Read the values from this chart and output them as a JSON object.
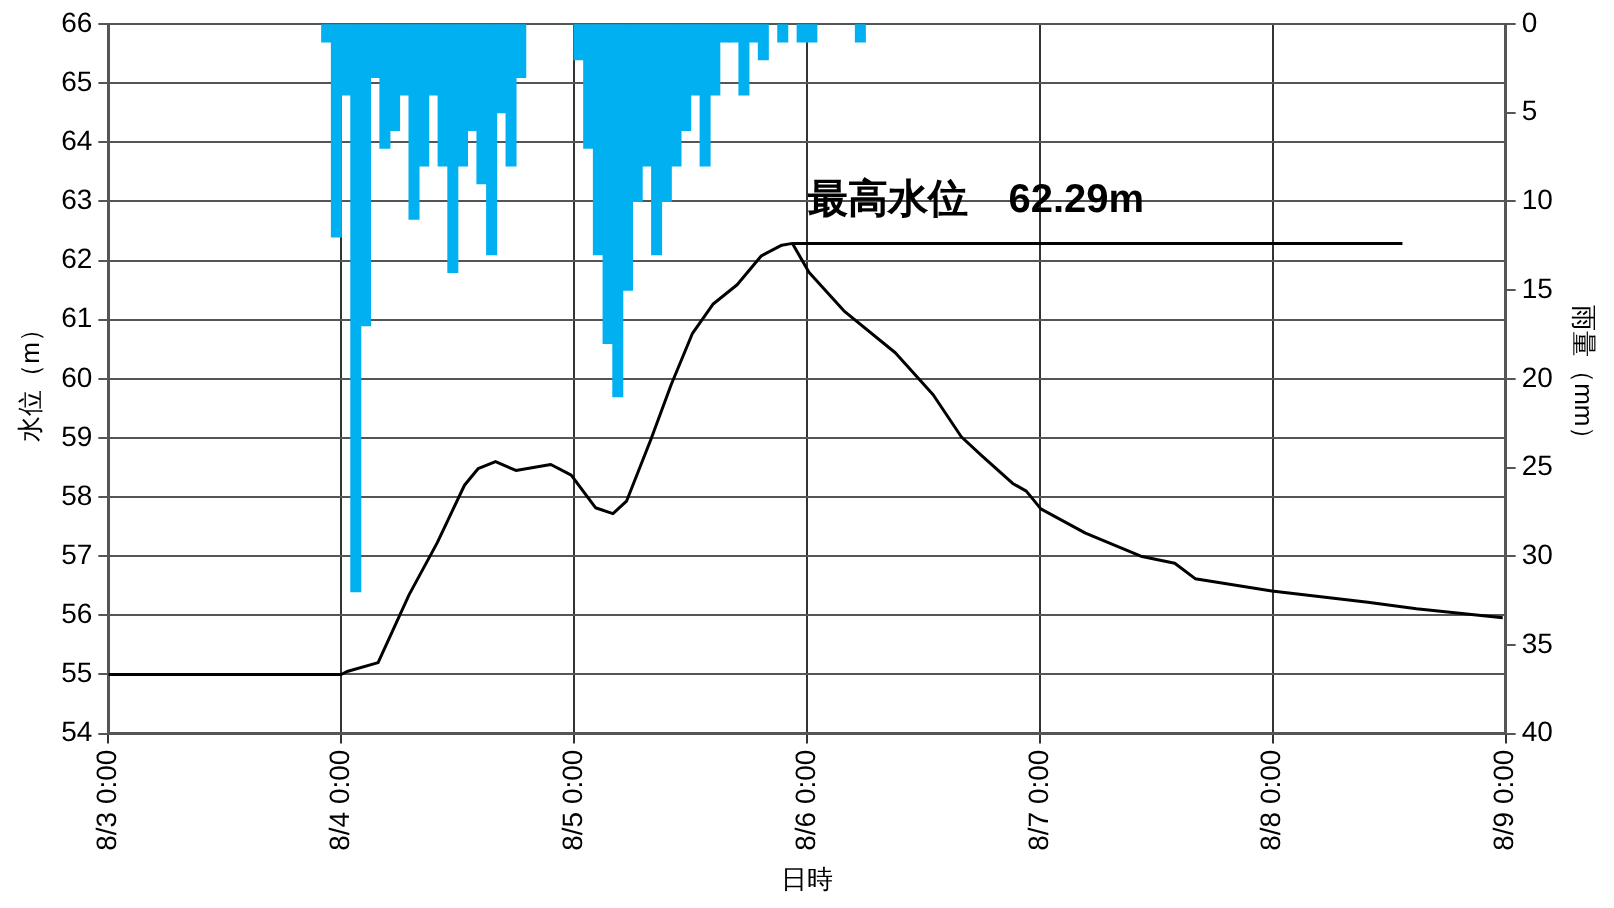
{
  "chart_data": {
    "type": "line",
    "xlabel": "日時",
    "ylabel": "水位（m）",
    "y2label": "雨量（mm）",
    "xlim": [
      "--08-03T00:00",
      "--08-09T00:00"
    ],
    "xticks": [
      {
        "value": "--08-03T00:00",
        "label": "8/3 0:00"
      },
      {
        "value": "--08-04T00:00",
        "label": "8/4 0:00"
      },
      {
        "value": "--08-05T00:00",
        "label": "8/5 0:00"
      },
      {
        "value": "--08-06T00:00",
        "label": "8/6 0:00"
      },
      {
        "value": "--08-07T00:00",
        "label": "8/7 0:00"
      },
      {
        "value": "--08-08T00:00",
        "label": "8/8 0:00"
      },
      {
        "value": "--08-09T00:00",
        "label": "8/9 0:00"
      }
    ],
    "ylim": [
      54,
      66
    ],
    "yticks": [
      54,
      55,
      56,
      57,
      58,
      59,
      60,
      61,
      62,
      63,
      64,
      65,
      66
    ],
    "y2lim": [
      40,
      0
    ],
    "y2ticks": [
      0,
      5,
      10,
      15,
      20,
      25,
      30,
      35,
      40
    ],
    "grid": true,
    "legend": false,
    "marker": "none",
    "annotations": [
      {
        "text": "最高水位　62.29m",
        "x": "--08-05T22:30",
        "y": 62.29
      }
    ],
    "series": [
      {
        "type": "bar",
        "axis": "y2",
        "color": "#00b0f0",
        "x": [
          "--08-03T22:30",
          "--08-03T23:30",
          "--08-04T00:30",
          "--08-04T01:30",
          "--08-04T02:30",
          "--08-04T03:30",
          "--08-04T04:30",
          "--08-04T05:30",
          "--08-04T06:30",
          "--08-04T07:30",
          "--08-04T08:30",
          "--08-04T09:30",
          "--08-04T10:30",
          "--08-04T11:30",
          "--08-04T12:30",
          "--08-04T13:30",
          "--08-04T14:30",
          "--08-04T15:30",
          "--08-04T16:30",
          "--08-04T17:30",
          "--08-04T18:30",
          "--08-05T00:30",
          "--08-05T01:30",
          "--08-05T02:30",
          "--08-05T03:30",
          "--08-05T04:30",
          "--08-05T05:30",
          "--08-05T06:30",
          "--08-05T07:30",
          "--08-05T08:30",
          "--08-05T09:30",
          "--08-05T10:30",
          "--08-05T11:30",
          "--08-05T12:30",
          "--08-05T13:30",
          "--08-05T14:30",
          "--08-05T15:30",
          "--08-05T16:30",
          "--08-05T17:30",
          "--08-05T18:30",
          "--08-05T19:30",
          "--08-05T21:30",
          "--08-05T23:30",
          "--08-06T00:30",
          "--08-06T05:30"
        ],
        "values": [
          1,
          12,
          4,
          32,
          17,
          3,
          7,
          6,
          4,
          11,
          8,
          4,
          8,
          14,
          8,
          6,
          9,
          13,
          5,
          8,
          3,
          2,
          7,
          13,
          18,
          21,
          15,
          10,
          8,
          13,
          10,
          8,
          6,
          4,
          8,
          4,
          1,
          1,
          4,
          1,
          2,
          1,
          1,
          1,
          1
        ]
      },
      {
        "color": "#000000",
        "x": [
          "--08-03T00:00",
          "--08-03T12:00",
          "--08-04T00:00",
          "--08-04T00:36",
          "--08-04T03:48",
          "--08-04T07:00",
          "--08-04T09:54",
          "--08-04T12:42",
          "--08-04T14:06",
          "--08-04T15:54",
          "--08-04T18:00",
          "--08-04T21:36",
          "--08-04T23:42",
          "--08-05T02:12",
          "--08-05T04:00",
          "--08-05T05:24",
          "--08-05T07:54",
          "--08-05T10:00",
          "--08-05T12:12",
          "--08-05T14:18",
          "--08-05T16:48",
          "--08-05T19:18",
          "--08-05T21:24",
          "--08-05T22:30",
          "--08-06T00:12",
          "--08-06T03:48",
          "--08-06T09:06",
          "--08-06T13:00",
          "--08-06T15:54",
          "--08-06T18:00",
          "--08-06T21:12",
          "--08-06T22:36",
          "--08-07T00:06",
          "--08-07T04:42",
          "--08-07T10:24",
          "--08-07T13:54",
          "--08-07T16:00",
          "--08-07T23:54",
          "--08-08T09:48",
          "--08-08T14:48",
          "--08-08T23:42"
        ],
        "values": [
          55,
          55,
          55,
          55.05,
          55.2,
          56.35,
          57.23,
          58.2,
          58.48,
          58.6,
          58.45,
          58.55,
          58.37,
          57.82,
          57.72,
          57.93,
          58.97,
          59.9,
          60.77,
          61.26,
          61.59,
          62.08,
          62.26,
          62.29,
          61.8,
          61.15,
          60.44,
          59.73,
          59.02,
          58.7,
          58.23,
          58.1,
          57.8,
          57.39,
          57,
          56.88,
          56.62,
          56.41,
          56.22,
          56.11,
          55.96
        ]
      }
    ]
  }
}
